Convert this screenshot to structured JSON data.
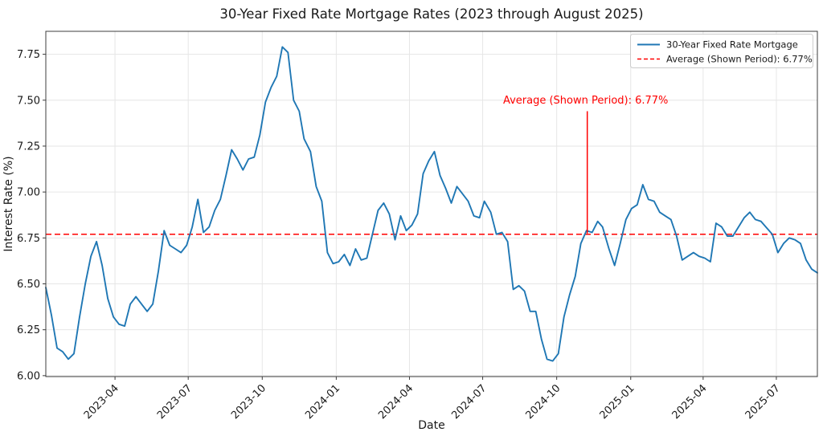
{
  "figure": {
    "title": "30-Year Fixed Rate Mortgage Rates (2023 through August 2025)",
    "xlabel": "Date",
    "ylabel": "Interest Rate (%)"
  },
  "colors": {
    "series_blue": "#1f77b4",
    "average_red": "#ff0000",
    "grid": "#e6e6e6",
    "spine": "#3c3c3c",
    "legend_border": "#cccccc",
    "background": "#ffffff"
  },
  "legend": {
    "position": "upper right",
    "entries": [
      {
        "label": "30-Year Fixed Rate Mortgage",
        "color": "#1f77b4",
        "style": "solid"
      },
      {
        "label": "Average (Shown Period): 6.77%",
        "color": "#ff0000",
        "style": "dashed"
      }
    ]
  },
  "annotation": {
    "text": "Average (Shown Period): 6.77%",
    "color": "#ff0000",
    "anchor_date": "2024-11-08",
    "text_value": 7.49,
    "line_top_value": 7.44
  },
  "chart_data": {
    "type": "line",
    "title": "30-Year Fixed Rate Mortgage Rates (2023 through August 2025)",
    "xlabel": "Date",
    "ylabel": "Interest Rate (%)",
    "grid": true,
    "legend_position": "upper right",
    "xlim": [
      "2023-01-05",
      "2025-08-21"
    ],
    "ylim": [
      5.995,
      7.875
    ],
    "x_ticks": [
      "2023-04",
      "2023-07",
      "2023-10",
      "2024-01",
      "2024-04",
      "2024-07",
      "2024-10",
      "2025-01",
      "2025-04",
      "2025-07"
    ],
    "y_ticks": [
      6.0,
      6.25,
      6.5,
      6.75,
      7.0,
      7.25,
      7.5,
      7.75
    ],
    "y_tick_labels": [
      "6.00",
      "6.25",
      "6.50",
      "6.75",
      "7.00",
      "7.25",
      "7.50",
      "7.75"
    ],
    "average_line": {
      "value": 6.77,
      "label": "Average (Shown Period): 6.77%",
      "color": "#ff0000",
      "style": "dashed"
    },
    "x": [
      "2023-01-05",
      "2023-01-12",
      "2023-01-19",
      "2023-01-26",
      "2023-02-02",
      "2023-02-09",
      "2023-02-16",
      "2023-02-23",
      "2023-03-02",
      "2023-03-09",
      "2023-03-16",
      "2023-03-23",
      "2023-03-30",
      "2023-04-06",
      "2023-04-13",
      "2023-04-20",
      "2023-04-27",
      "2023-05-04",
      "2023-05-11",
      "2023-05-18",
      "2023-05-25",
      "2023-06-01",
      "2023-06-08",
      "2023-06-15",
      "2023-06-22",
      "2023-06-29",
      "2023-07-06",
      "2023-07-13",
      "2023-07-20",
      "2023-07-27",
      "2023-08-03",
      "2023-08-10",
      "2023-08-17",
      "2023-08-24",
      "2023-08-31",
      "2023-09-07",
      "2023-09-14",
      "2023-09-21",
      "2023-09-28",
      "2023-10-05",
      "2023-10-12",
      "2023-10-19",
      "2023-10-26",
      "2023-11-02",
      "2023-11-09",
      "2023-11-16",
      "2023-11-22",
      "2023-11-30",
      "2023-12-07",
      "2023-12-14",
      "2023-12-21",
      "2023-12-28",
      "2024-01-04",
      "2024-01-11",
      "2024-01-18",
      "2024-01-25",
      "2024-02-01",
      "2024-02-08",
      "2024-02-15",
      "2024-02-22",
      "2024-02-29",
      "2024-03-07",
      "2024-03-14",
      "2024-03-21",
      "2024-03-28",
      "2024-04-04",
      "2024-04-11",
      "2024-04-18",
      "2024-04-25",
      "2024-05-02",
      "2024-05-09",
      "2024-05-16",
      "2024-05-23",
      "2024-05-30",
      "2024-06-06",
      "2024-06-13",
      "2024-06-20",
      "2024-06-27",
      "2024-07-03",
      "2024-07-11",
      "2024-07-18",
      "2024-07-25",
      "2024-08-01",
      "2024-08-08",
      "2024-08-15",
      "2024-08-22",
      "2024-08-29",
      "2024-09-05",
      "2024-09-12",
      "2024-09-19",
      "2024-09-26",
      "2024-10-03",
      "2024-10-10",
      "2024-10-17",
      "2024-10-24",
      "2024-10-31",
      "2024-11-07",
      "2024-11-14",
      "2024-11-21",
      "2024-11-27",
      "2024-12-05",
      "2024-12-12",
      "2024-12-19",
      "2024-12-26",
      "2025-01-02",
      "2025-01-09",
      "2025-01-16",
      "2025-01-23",
      "2025-01-30",
      "2025-02-06",
      "2025-02-13",
      "2025-02-20",
      "2025-02-27",
      "2025-03-06",
      "2025-03-13",
      "2025-03-20",
      "2025-03-27",
      "2025-04-03",
      "2025-04-10",
      "2025-04-17",
      "2025-04-24",
      "2025-05-01",
      "2025-05-08",
      "2025-05-15",
      "2025-05-22",
      "2025-05-29",
      "2025-06-05",
      "2025-06-12",
      "2025-06-18",
      "2025-06-26",
      "2025-07-03",
      "2025-07-10",
      "2025-07-17",
      "2025-07-24",
      "2025-07-31",
      "2025-08-07",
      "2025-08-14",
      "2025-08-21"
    ],
    "series": [
      {
        "name": "30-Year Fixed Rate Mortgage",
        "color": "#1f77b4",
        "values": [
          6.48,
          6.33,
          6.15,
          6.13,
          6.09,
          6.12,
          6.32,
          6.5,
          6.65,
          6.73,
          6.6,
          6.42,
          6.32,
          6.28,
          6.27,
          6.39,
          6.43,
          6.39,
          6.35,
          6.39,
          6.57,
          6.79,
          6.71,
          6.69,
          6.67,
          6.71,
          6.81,
          6.96,
          6.78,
          6.81,
          6.9,
          6.96,
          7.09,
          7.23,
          7.18,
          7.12,
          7.18,
          7.19,
          7.31,
          7.49,
          7.57,
          7.63,
          7.79,
          7.76,
          7.5,
          7.44,
          7.29,
          7.22,
          7.03,
          6.95,
          6.67,
          6.61,
          6.62,
          6.66,
          6.6,
          6.69,
          6.63,
          6.64,
          6.77,
          6.9,
          6.94,
          6.88,
          6.74,
          6.87,
          6.79,
          6.82,
          6.88,
          7.1,
          7.17,
          7.22,
          7.09,
          7.02,
          6.94,
          7.03,
          6.99,
          6.95,
          6.87,
          6.86,
          6.95,
          6.89,
          6.77,
          6.78,
          6.73,
          6.47,
          6.49,
          6.46,
          6.35,
          6.35,
          6.2,
          6.09,
          6.08,
          6.12,
          6.32,
          6.44,
          6.54,
          6.72,
          6.79,
          6.78,
          6.84,
          6.81,
          6.69,
          6.6,
          6.72,
          6.85,
          6.91,
          6.93,
          7.04,
          6.96,
          6.95,
          6.89,
          6.87,
          6.85,
          6.76,
          6.63,
          6.65,
          6.67,
          6.65,
          6.64,
          6.62,
          6.83,
          6.81,
          6.76,
          6.76,
          6.81,
          6.86,
          6.89,
          6.85,
          6.84,
          6.81,
          6.77,
          6.67,
          6.72,
          6.75,
          6.74,
          6.72,
          6.63,
          6.58,
          6.56
        ]
      }
    ]
  }
}
